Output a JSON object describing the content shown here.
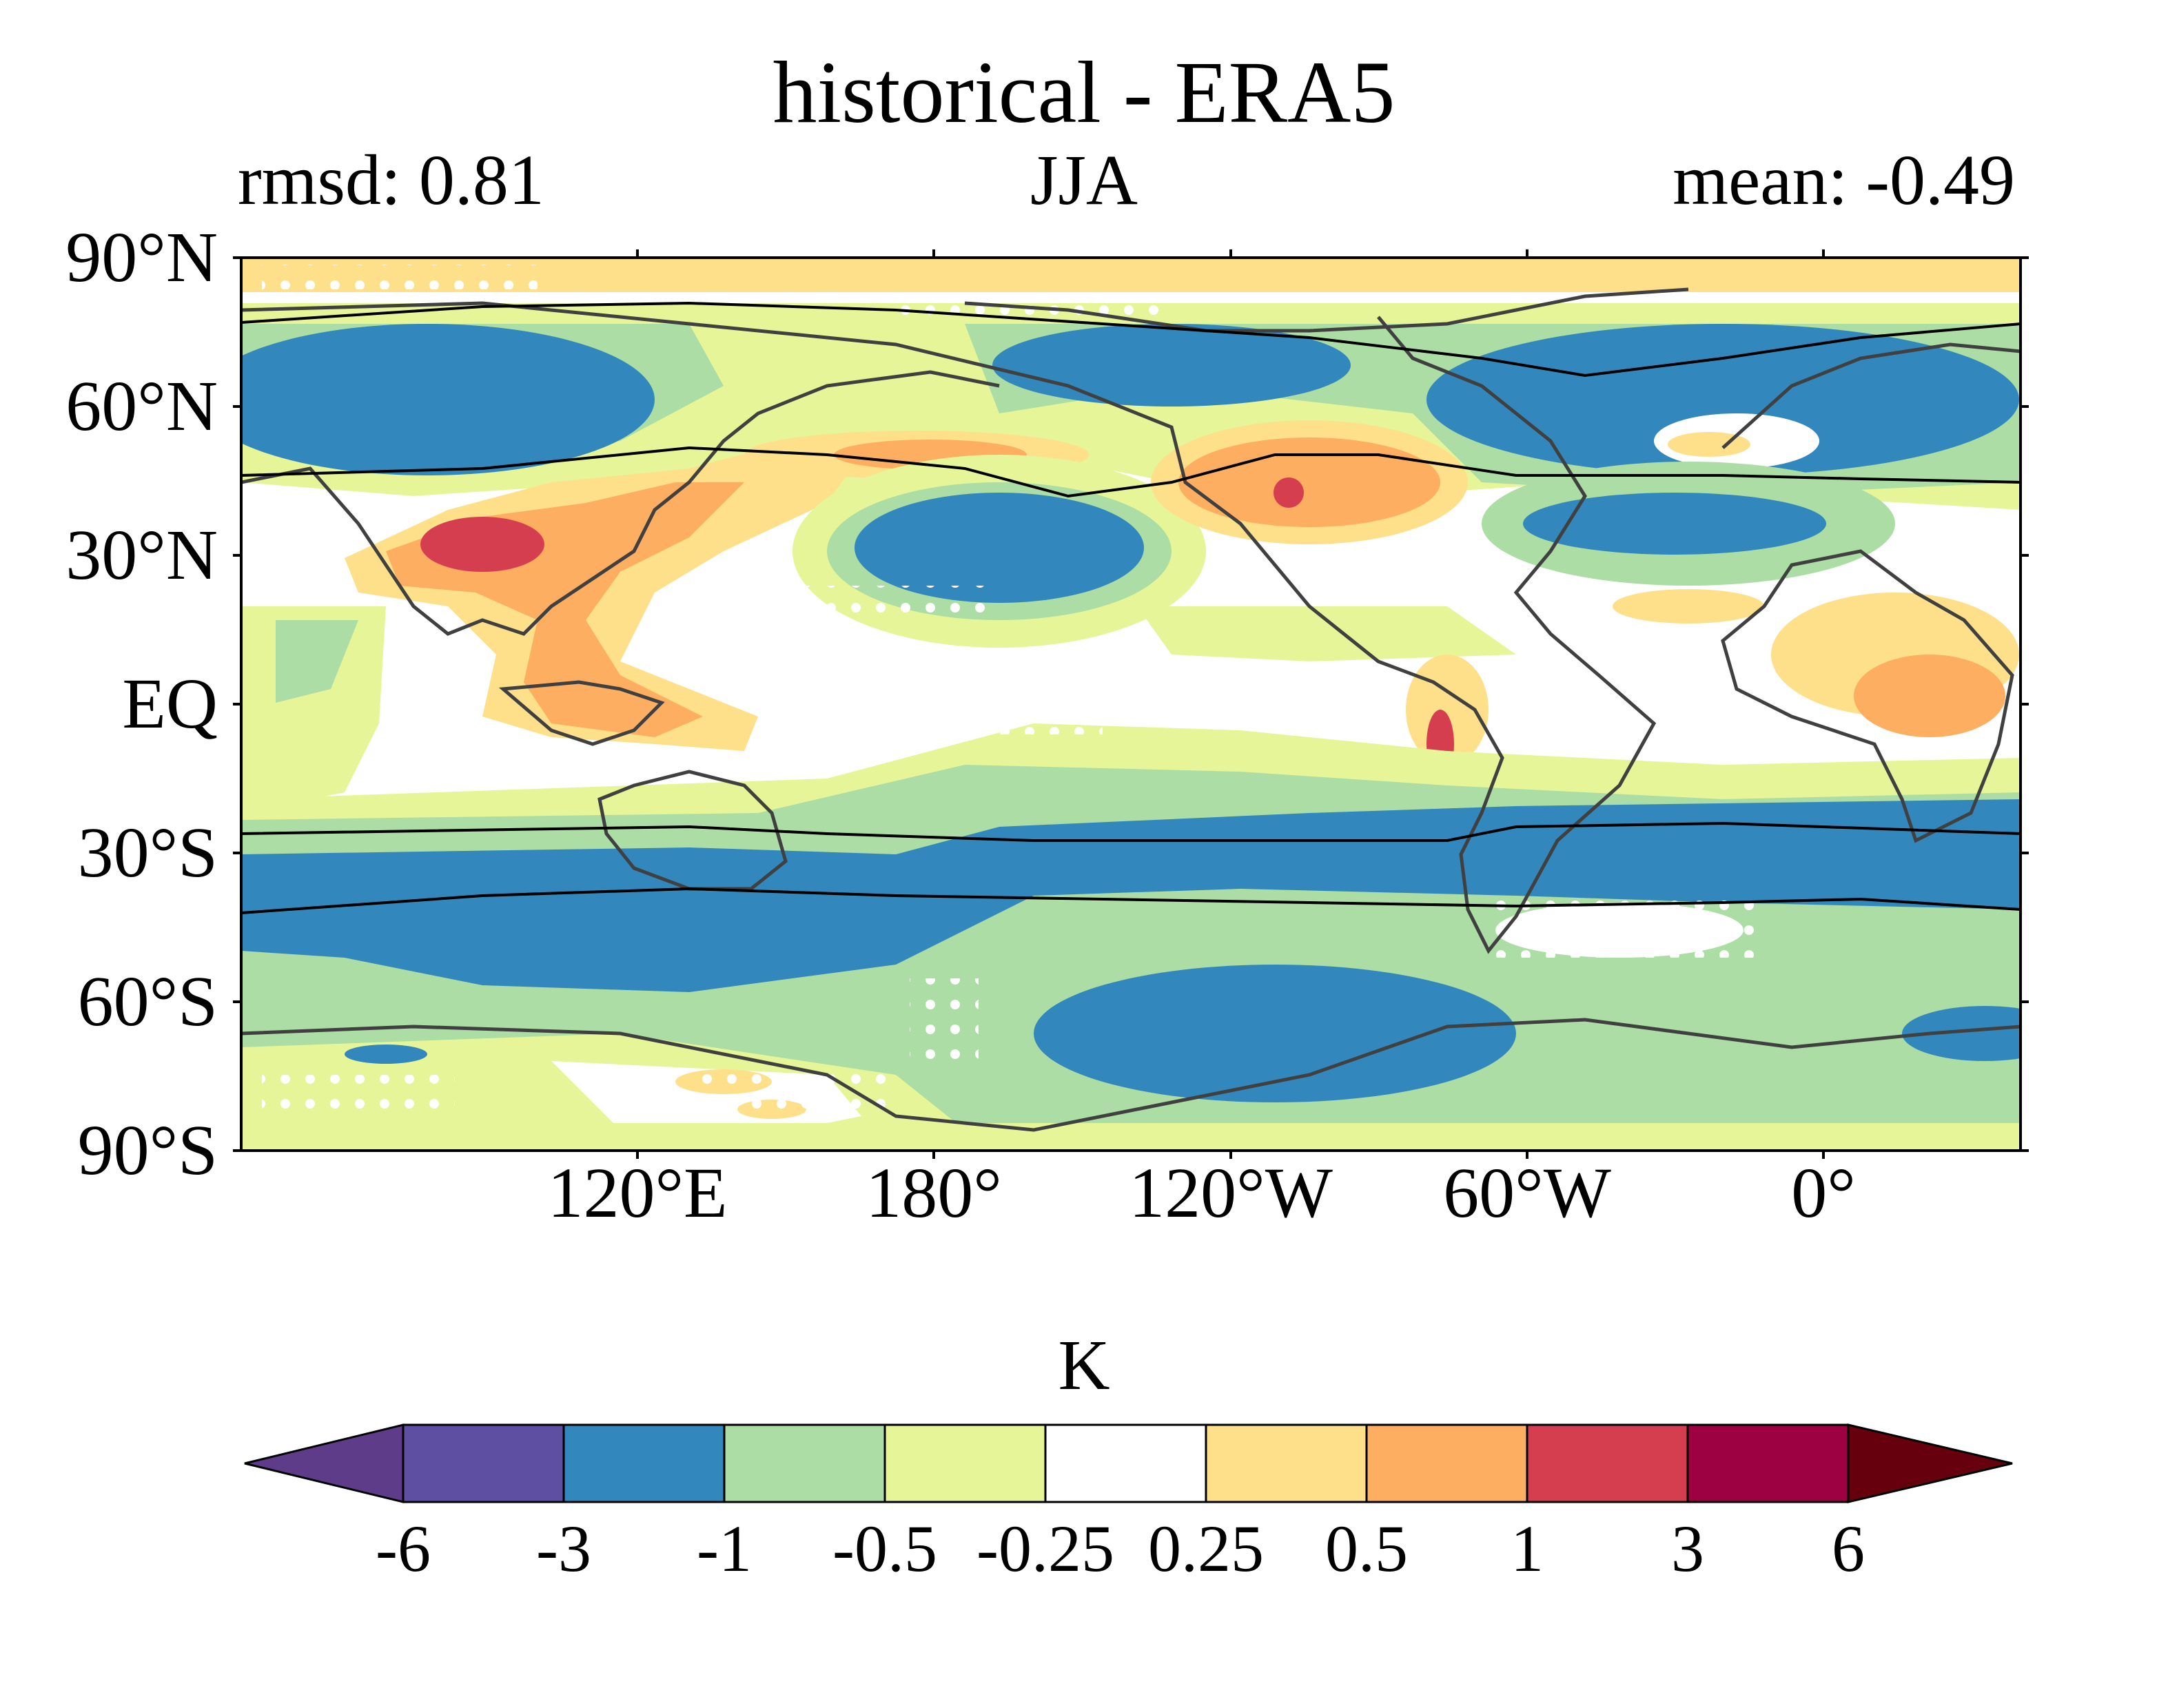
{
  "title": "historical - ERA5",
  "left_label": "rmsd: 0.81",
  "center_label": "JJA",
  "right_label": "mean: -0.49",
  "lat_ticks": [
    "90°N",
    "60°N",
    "30°N",
    "EQ",
    "30°S",
    "60°S",
    "90°S"
  ],
  "lon_ticks": [
    "120°E",
    "180°",
    "120°W",
    "60°W",
    "0°"
  ],
  "colorbar": {
    "unit": "K",
    "tick_labels": [
      "-6",
      "-3",
      "-1",
      "-0.5",
      "-0.25",
      "0.25",
      "0.5",
      "1",
      "3",
      "6"
    ],
    "colors": [
      "#5e3c8a",
      "#5e4fa2",
      "#3288bd",
      "#abdda4",
      "#e6f598",
      "#ffffff",
      "#fee08b",
      "#fdae61",
      "#d53e4f",
      "#9e0142",
      "#67000d"
    ]
  },
  "chart_data": {
    "type": "heatmap",
    "variable_unit": "K",
    "levels": [
      -6,
      -3,
      -1,
      -0.5,
      -0.25,
      0.25,
      0.5,
      1,
      3,
      6
    ],
    "lat_range": [
      -90,
      90
    ],
    "lon_range": [
      20,
      380
    ],
    "summary": {
      "rmsd": 0.81,
      "mean": -0.49
    }
  }
}
